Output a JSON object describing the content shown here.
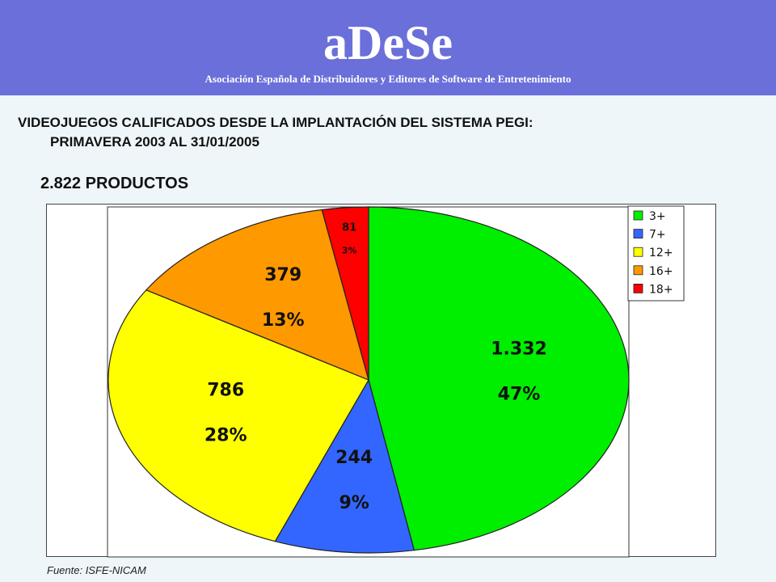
{
  "header": {
    "brand": "aDeSe",
    "subtitle": "Asociación Española de Distribuidores y Editores de Software de Entretenimiento"
  },
  "heading": {
    "line1": "VIDEOJUEGOS CALIFICADOS DESDE LA IMPLANTACIÓN DEL SISTEMA PEGI:",
    "line2": "PRIMAVERA 2003 AL 31/01/2005",
    "total": "2.822 PRODUCTOS"
  },
  "source": "Fuente: ISFE-NICAM",
  "colors": {
    "header_bg": "#6b6fd9",
    "page_bg": "#eef6fa"
  },
  "chart_data": {
    "type": "pie",
    "title": "",
    "legend_position": "top-right",
    "slices": [
      {
        "name": "3+",
        "value": 1332,
        "value_label": "1.332",
        "percent_label": "47%",
        "color": "#00ee00"
      },
      {
        "name": "7+",
        "value": 244,
        "value_label": "244",
        "percent_label": "9%",
        "color": "#3366ff"
      },
      {
        "name": "12+",
        "value": 786,
        "value_label": "786",
        "percent_label": "28%",
        "color": "#ffff00"
      },
      {
        "name": "16+",
        "value": 379,
        "value_label": "379",
        "percent_label": "13%",
        "color": "#ff9900"
      },
      {
        "name": "18+",
        "value": 81,
        "value_label": "81",
        "percent_label": "3%",
        "color": "#ff0000"
      }
    ]
  }
}
